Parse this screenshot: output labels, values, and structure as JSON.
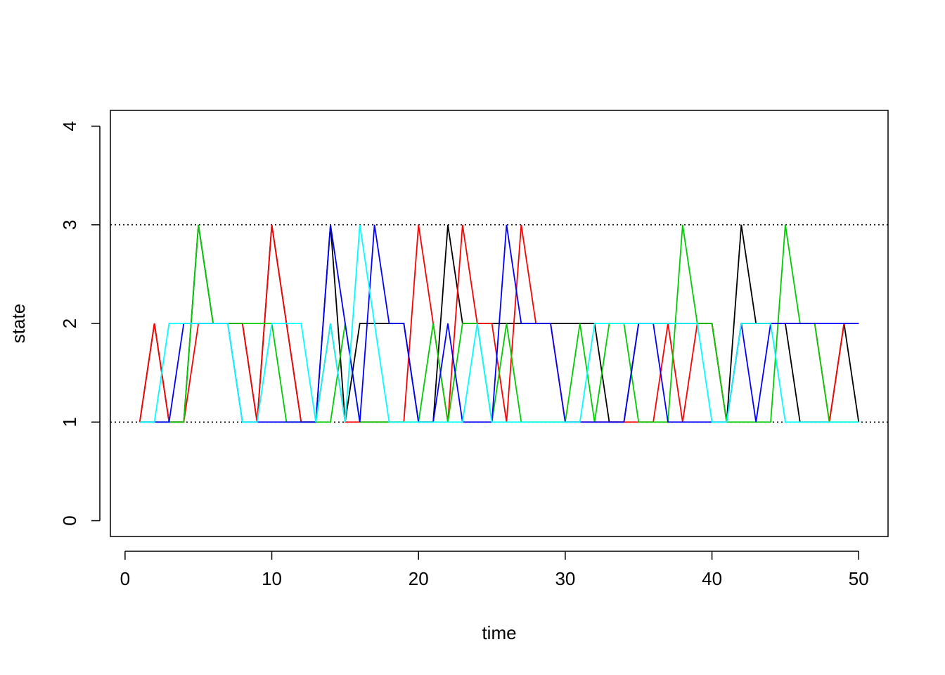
{
  "chart_data": {
    "type": "line",
    "title": "",
    "xlabel": "time",
    "ylabel": "state",
    "xlim": [
      -1,
      52
    ],
    "ylim": [
      -0.16,
      4.16
    ],
    "x_ticks": [
      0,
      10,
      20,
      30,
      40,
      50
    ],
    "y_ticks": [
      0,
      1,
      2,
      3,
      4
    ],
    "x_tick_labels": [
      "0",
      "10",
      "20",
      "30",
      "40",
      "50"
    ],
    "y_tick_labels": [
      "0",
      "1",
      "2",
      "3",
      "4"
    ],
    "reference_lines": [
      1,
      3
    ],
    "reference_line_style": "dotted",
    "grid": false,
    "legend": "none",
    "x": [
      1,
      2,
      3,
      4,
      5,
      6,
      7,
      8,
      9,
      10,
      11,
      12,
      13,
      14,
      15,
      16,
      17,
      18,
      19,
      20,
      21,
      22,
      23,
      24,
      25,
      26,
      27,
      28,
      29,
      30,
      31,
      32,
      33,
      34,
      35,
      36,
      37,
      38,
      39,
      40,
      41,
      42,
      43,
      44,
      45,
      46,
      47,
      48,
      49,
      50
    ],
    "series": [
      {
        "color": "#000000",
        "values": [
          1,
          2,
          1,
          1,
          3,
          2,
          2,
          2,
          1,
          3,
          2,
          1,
          1,
          3,
          1,
          2,
          2,
          2,
          2,
          1,
          1,
          3,
          2,
          2,
          2,
          2,
          2,
          2,
          2,
          2,
          2,
          2,
          1,
          1,
          2,
          2,
          2,
          2,
          2,
          2,
          1,
          3,
          2,
          2,
          2,
          1,
          1,
          1,
          2,
          1
        ]
      },
      {
        "color": "#ff0000",
        "values": [
          1,
          2,
          1,
          1,
          2,
          2,
          2,
          2,
          1,
          3,
          2,
          1,
          1,
          2,
          1,
          1,
          1,
          1,
          1,
          3,
          2,
          1,
          3,
          2,
          2,
          1,
          3,
          2,
          2,
          1,
          1,
          1,
          1,
          1,
          1,
          1,
          2,
          1,
          2,
          2,
          1,
          2,
          2,
          2,
          2,
          2,
          2,
          1,
          2,
          2
        ]
      },
      {
        "color": "#00cd00",
        "values": [
          1,
          1,
          1,
          1,
          3,
          2,
          2,
          2,
          2,
          2,
          1,
          1,
          1,
          1,
          2,
          1,
          1,
          1,
          1,
          1,
          2,
          1,
          2,
          2,
          1,
          2,
          1,
          1,
          1,
          1,
          2,
          1,
          2,
          2,
          1,
          1,
          1,
          3,
          2,
          2,
          1,
          1,
          1,
          1,
          3,
          2,
          2,
          1,
          1,
          1
        ]
      },
      {
        "color": "#0000ff",
        "values": [
          1,
          1,
          1,
          2,
          2,
          2,
          2,
          1,
          1,
          1,
          1,
          1,
          1,
          3,
          2,
          1,
          3,
          2,
          2,
          1,
          1,
          2,
          1,
          1,
          1,
          3,
          2,
          2,
          2,
          1,
          1,
          1,
          1,
          1,
          2,
          2,
          1,
          1,
          1,
          1,
          1,
          2,
          1,
          2,
          2,
          2,
          2,
          2,
          2,
          2
        ]
      },
      {
        "color": "#00ffff",
        "values": [
          1,
          1,
          2,
          2,
          2,
          2,
          2,
          1,
          1,
          2,
          2,
          2,
          1,
          2,
          1,
          3,
          2,
          1,
          1,
          1,
          1,
          1,
          1,
          2,
          1,
          1,
          1,
          1,
          1,
          1,
          1,
          2,
          2,
          2,
          2,
          2,
          2,
          2,
          2,
          1,
          1,
          2,
          2,
          2,
          1,
          1,
          1,
          1,
          1,
          1
        ]
      }
    ]
  }
}
